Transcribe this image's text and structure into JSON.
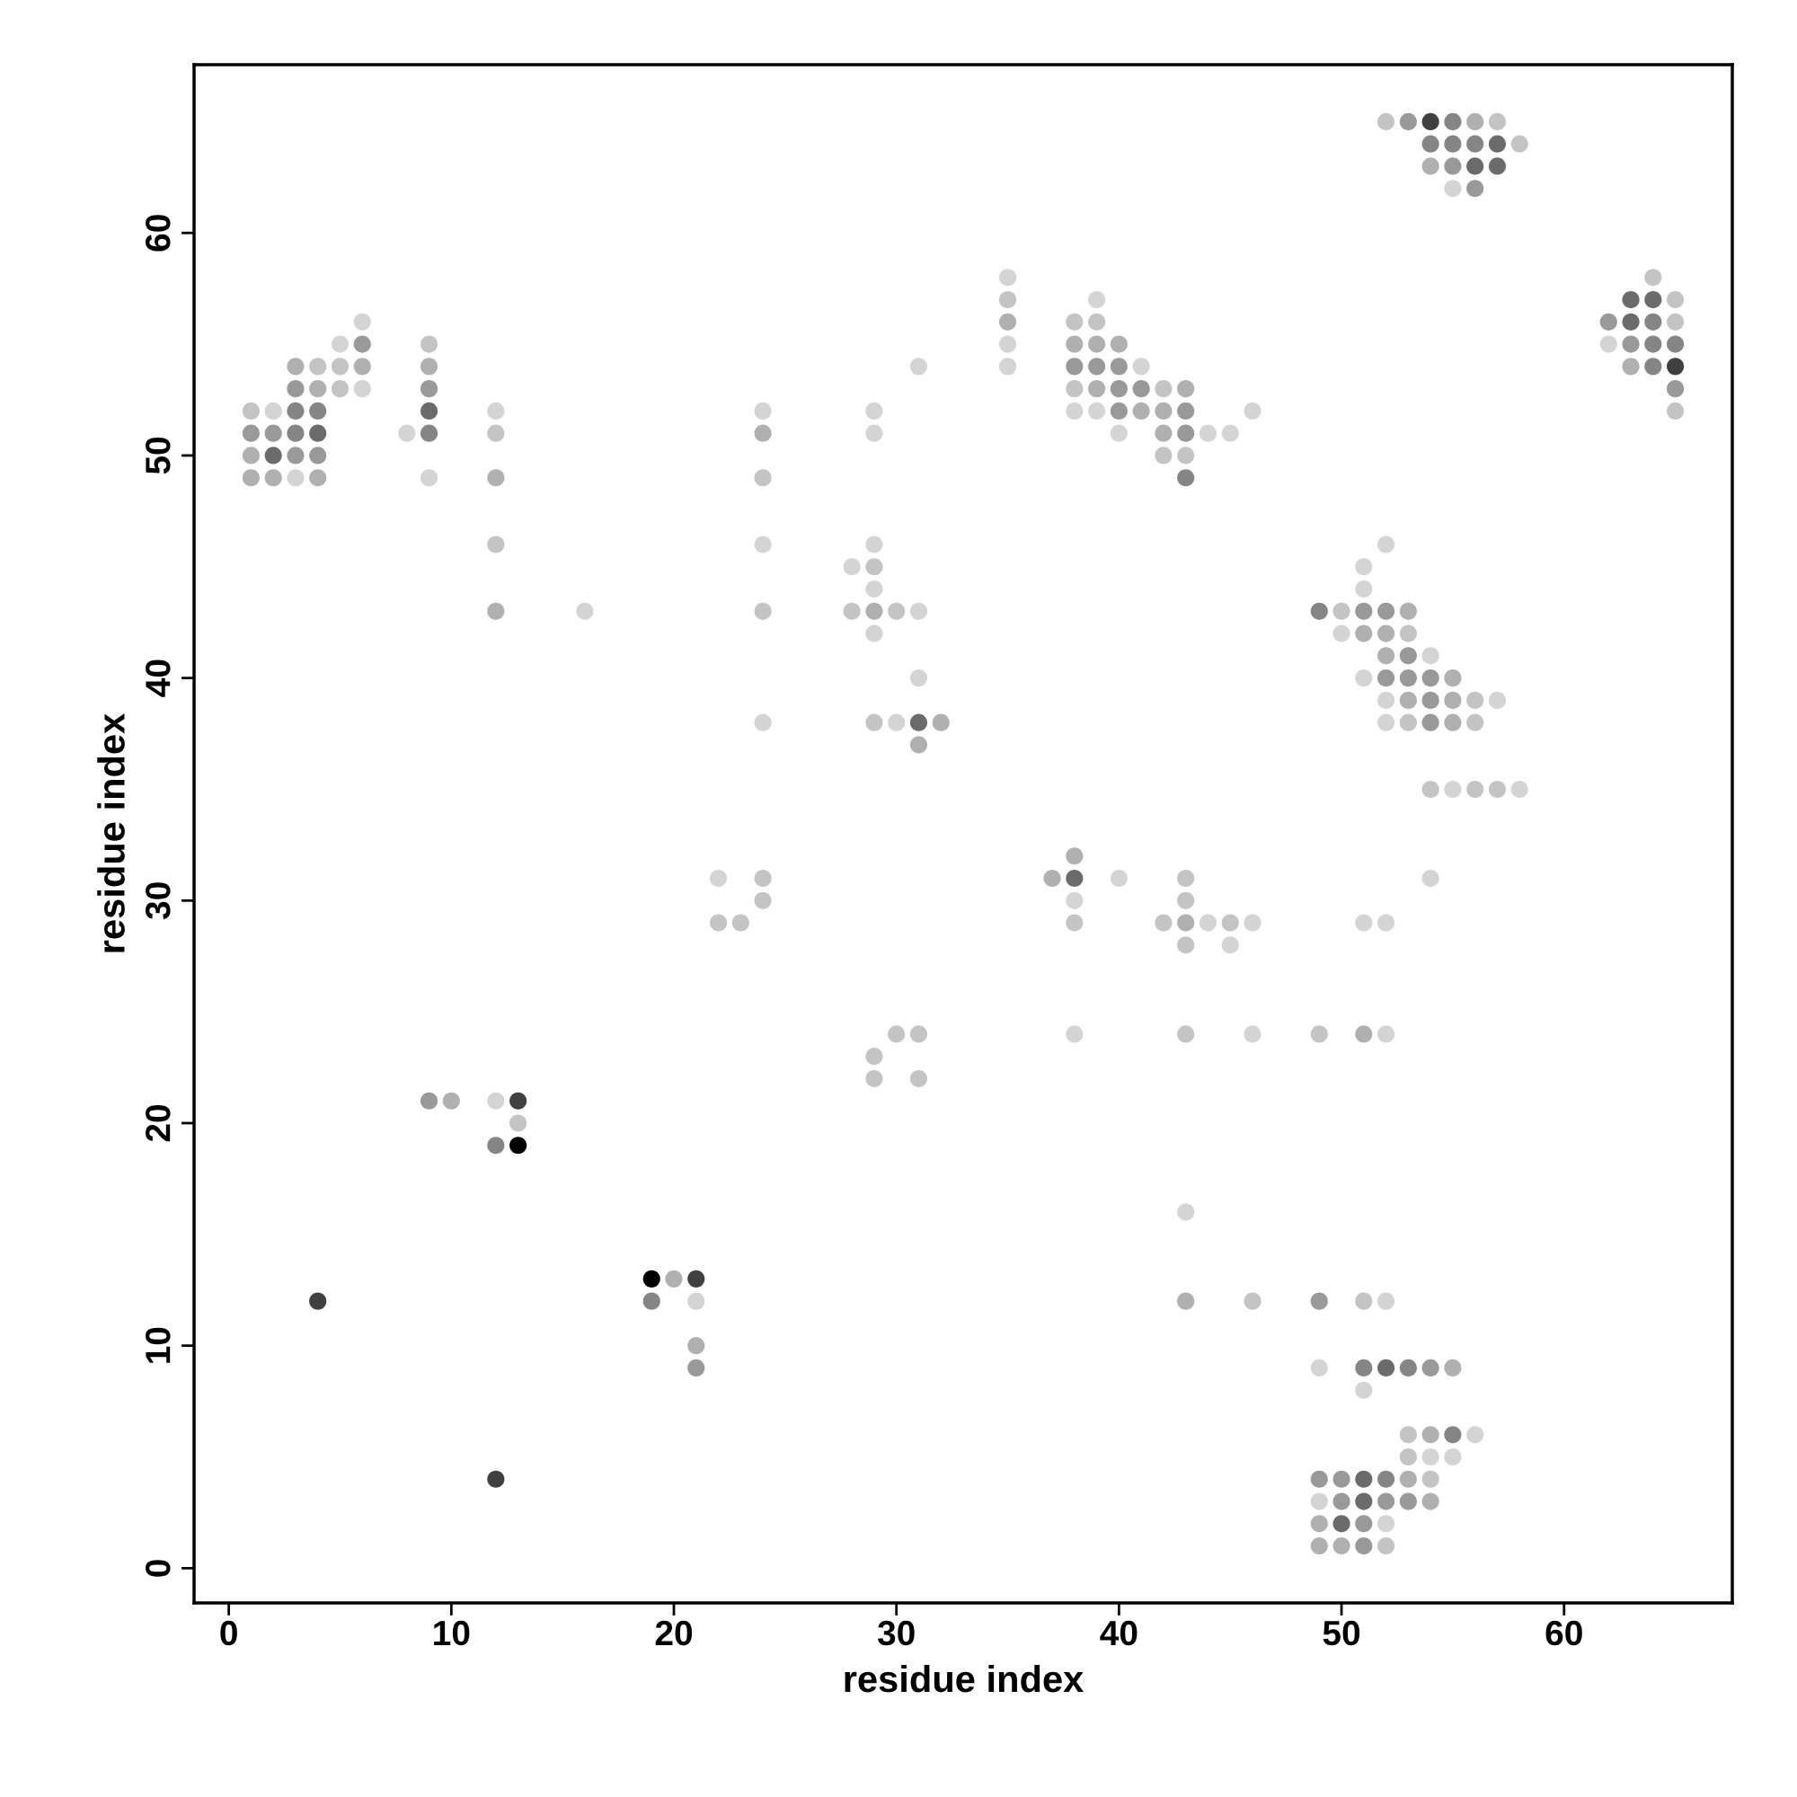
{
  "chart_data": {
    "type": "scatter",
    "xlabel": "residue index",
    "ylabel": "residue index",
    "xlim": [
      -1.56,
      67.56
    ],
    "ylim": [
      -1.56,
      67.56
    ],
    "xticks": [
      0,
      10,
      20,
      30,
      40,
      50,
      60
    ],
    "yticks": [
      0,
      10,
      20,
      30,
      40,
      50,
      60
    ],
    "grid": false,
    "marker": "circle",
    "series": [
      {
        "color": "#d4d4d4",
        "x": [
          2,
          3,
          5,
          6,
          6,
          8,
          9,
          12,
          16,
          12,
          21,
          22,
          24,
          24,
          24,
          29,
          29,
          29,
          29,
          29,
          28,
          30,
          31,
          31,
          31,
          35,
          35,
          35,
          38,
          39,
          39,
          40,
          41,
          44,
          45,
          46,
          38,
          38,
          40,
          43,
          44,
          45,
          46,
          46,
          55,
          62,
          52,
          51,
          51,
          50,
          54,
          51,
          52,
          57,
          52,
          55,
          58,
          54,
          51,
          52,
          52,
          52,
          49,
          51,
          56,
          54,
          55,
          49,
          52
        ],
        "values": [
          52,
          49,
          55,
          56,
          53,
          51,
          49,
          52,
          43,
          21,
          12,
          31,
          52,
          46,
          38,
          52,
          51,
          46,
          44,
          42,
          45,
          38,
          54,
          43,
          40,
          58,
          55,
          54,
          52,
          57,
          52,
          51,
          54,
          51,
          51,
          52,
          30,
          24,
          31,
          16,
          29,
          28,
          29,
          24,
          62,
          55,
          46,
          45,
          44,
          42,
          41,
          40,
          39,
          39,
          38,
          35,
          35,
          31,
          29,
          29,
          24,
          12,
          9,
          8,
          6,
          5,
          5,
          3,
          2
        ]
      },
      {
        "color": "#c4c4c4",
        "x": [
          1,
          4,
          5,
          5,
          9,
          12,
          12,
          13,
          22,
          23,
          24,
          24,
          24,
          24,
          29,
          29,
          28,
          30,
          35,
          38,
          38,
          39,
          42,
          42,
          43,
          38,
          43,
          43,
          43,
          43,
          42,
          45,
          46,
          30,
          31,
          29,
          29,
          31,
          52,
          57,
          58,
          64,
          65,
          65,
          65,
          50,
          53,
          56,
          53,
          56,
          54,
          56,
          57,
          49,
          51,
          53,
          53,
          54,
          52
        ],
        "values": [
          52,
          54,
          54,
          53,
          55,
          51,
          46,
          20,
          29,
          29,
          49,
          43,
          31,
          30,
          45,
          38,
          43,
          43,
          57,
          56,
          53,
          56,
          53,
          50,
          50,
          29,
          31,
          30,
          28,
          24,
          29,
          29,
          12,
          24,
          24,
          23,
          22,
          22,
          65,
          65,
          64,
          58,
          57,
          56,
          52,
          43,
          42,
          39,
          38,
          38,
          35,
          35,
          35,
          24,
          12,
          6,
          5,
          4,
          1
        ]
      },
      {
        "color": "#b0b0b0",
        "x": [
          1,
          1,
          2,
          3,
          4,
          4,
          6,
          9,
          12,
          12,
          10,
          20,
          21,
          24,
          29,
          31,
          32,
          35,
          38,
          39,
          39,
          40,
          41,
          42,
          42,
          43,
          37,
          38,
          43,
          43,
          56,
          54,
          63,
          51,
          52,
          52,
          53,
          55,
          53,
          55,
          55,
          51,
          55,
          54,
          53,
          54,
          49,
          49,
          50
        ],
        "values": [
          50,
          49,
          49,
          54,
          53,
          49,
          54,
          54,
          49,
          43,
          21,
          13,
          10,
          51,
          43,
          37,
          38,
          56,
          55,
          55,
          53,
          55,
          52,
          52,
          51,
          53,
          31,
          32,
          29,
          12,
          65,
          63,
          54,
          42,
          42,
          41,
          43,
          40,
          39,
          39,
          38,
          24,
          9,
          6,
          4,
          3,
          2,
          1,
          1
        ]
      },
      {
        "color": "#999999",
        "x": [
          1,
          2,
          3,
          3,
          4,
          6,
          9,
          9,
          21,
          38,
          39,
          40,
          40,
          40,
          41,
          43,
          43,
          53,
          55,
          56,
          62,
          63,
          65,
          51,
          52,
          53,
          52,
          53,
          54,
          54,
          54,
          49,
          54,
          49,
          50,
          50,
          52,
          53,
          51,
          51
        ],
        "values": [
          51,
          51,
          53,
          50,
          50,
          55,
          53,
          21,
          9,
          54,
          54,
          54,
          53,
          52,
          53,
          52,
          51,
          65,
          63,
          62,
          56,
          55,
          53,
          43,
          43,
          41,
          40,
          40,
          40,
          39,
          38,
          12,
          9,
          4,
          4,
          3,
          3,
          3,
          2,
          1
        ]
      },
      {
        "color": "#858585",
        "x": [
          3,
          3,
          4,
          9,
          12,
          19,
          43,
          55,
          54,
          55,
          56,
          64,
          64,
          65,
          64,
          49,
          51,
          53,
          55,
          52
        ],
        "values": [
          52,
          51,
          52,
          51,
          19,
          12,
          49,
          65,
          64,
          64,
          64,
          56,
          55,
          55,
          54,
          43,
          9,
          9,
          6,
          4
        ]
      },
      {
        "color": "#6b6b6b",
        "x": [
          2,
          4,
          9,
          31,
          38,
          57,
          56,
          57,
          63,
          64,
          63,
          52,
          51,
          51,
          50
        ],
        "values": [
          50,
          51,
          52,
          38,
          31,
          64,
          63,
          63,
          57,
          57,
          56,
          9,
          4,
          3,
          2
        ]
      },
      {
        "color": "#404040",
        "x": [
          13,
          4,
          21,
          12,
          54,
          65
        ],
        "values": [
          21,
          12,
          13,
          4,
          65,
          54
        ]
      },
      {
        "color": "#000000",
        "x": [
          13,
          19
        ],
        "values": [
          19,
          13
        ]
      }
    ]
  }
}
